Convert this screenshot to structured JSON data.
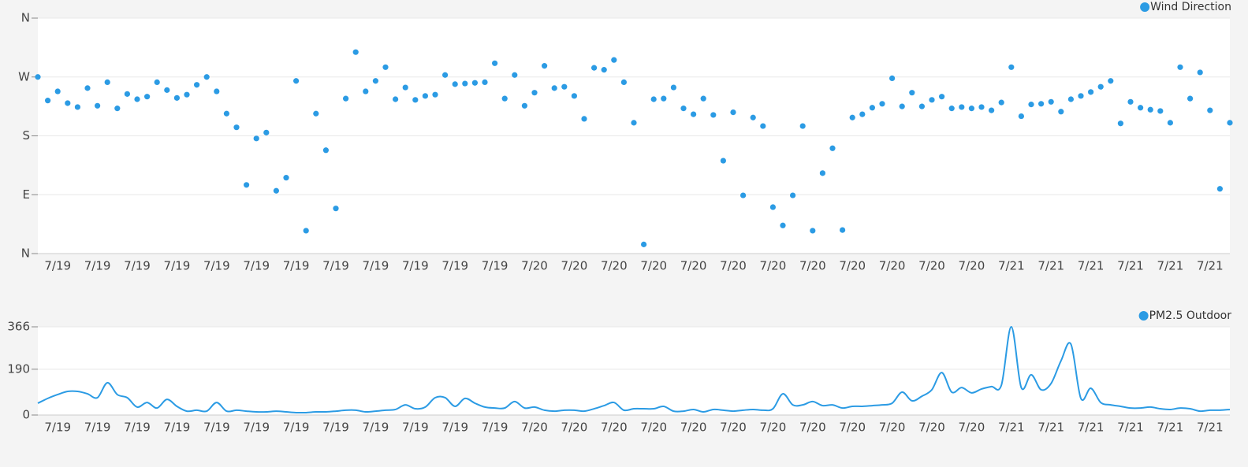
{
  "chart_data": [
    {
      "type": "scatter",
      "legend": "top-right",
      "grid": true,
      "categories": [
        null,
        null,
        "7/19",
        null,
        null,
        null,
        "7/19",
        null,
        null,
        null,
        "7/19",
        null,
        null,
        null,
        "7/19",
        null,
        null,
        null,
        "7/19",
        null,
        null,
        null,
        "7/19",
        null,
        null,
        null,
        "7/19",
        null,
        null,
        null,
        "7/19",
        null,
        null,
        null,
        "7/19",
        null,
        null,
        null,
        "7/19",
        null,
        null,
        null,
        "7/19",
        null,
        null,
        null,
        "7/19",
        null,
        null,
        null,
        "7/20",
        null,
        null,
        null,
        "7/20",
        null,
        null,
        null,
        "7/20",
        null,
        null,
        null,
        "7/20",
        null,
        null,
        null,
        "7/20",
        null,
        null,
        null,
        "7/20",
        null,
        null,
        null,
        "7/20",
        null,
        null,
        null,
        "7/20",
        null,
        null,
        null,
        "7/20",
        null,
        null,
        null,
        "7/20",
        null,
        null,
        null,
        "7/20",
        null,
        null,
        null,
        "7/20",
        null,
        null,
        null,
        "7/21",
        null,
        null,
        null,
        "7/21",
        null,
        null,
        null,
        "7/21",
        null,
        null,
        null,
        "7/21",
        null,
        null,
        null,
        "7/21",
        null,
        null,
        null,
        "7/21",
        null,
        null
      ],
      "series": [
        {
          "name": "Wind Direction",
          "color": "#2b9be4",
          "values": [
            270,
            234,
            248,
            230,
            224,
            253,
            226,
            262,
            222,
            244,
            236,
            240,
            262,
            250,
            238,
            243,
            258,
            270,
            248,
            214,
            193,
            105,
            176,
            185,
            96,
            116,
            264,
            35,
            214,
            158,
            69,
            237,
            308,
            248,
            264,
            285,
            236,
            254,
            235,
            241,
            243,
            273,
            259,
            260,
            261,
            262,
            291,
            237,
            273,
            226,
            246,
            287,
            253,
            255,
            241,
            206,
            284,
            281,
            296,
            262,
            200,
            14,
            236,
            237,
            254,
            222,
            213,
            237,
            212,
            142,
            216,
            89,
            208,
            195,
            71,
            43,
            89,
            195,
            35,
            123,
            161,
            36,
            208,
            213,
            223,
            229,
            268,
            225,
            246,
            225,
            235,
            240,
            222,
            224,
            222,
            224,
            219,
            231,
            285,
            210,
            228,
            229,
            232,
            217,
            236,
            241,
            247,
            255,
            264,
            199,
            232,
            223,
            220,
            218,
            200,
            285,
            237,
            277,
            219,
            99,
            200
          ]
        }
      ],
      "ylim": [
        0,
        360
      ],
      "yticks": [
        {
          "value": 0,
          "label": "N"
        },
        {
          "value": 90,
          "label": "E"
        },
        {
          "value": 180,
          "label": "S"
        },
        {
          "value": 270,
          "label": "W"
        },
        {
          "value": 360,
          "label": "N"
        }
      ]
    },
    {
      "type": "line",
      "legend": "top-right",
      "grid": true,
      "categories": [
        null,
        null,
        "7/19",
        null,
        null,
        null,
        "7/19",
        null,
        null,
        null,
        "7/19",
        null,
        null,
        null,
        "7/19",
        null,
        null,
        null,
        "7/19",
        null,
        null,
        null,
        "7/19",
        null,
        null,
        null,
        "7/19",
        null,
        null,
        null,
        "7/19",
        null,
        null,
        null,
        "7/19",
        null,
        null,
        null,
        "7/19",
        null,
        null,
        null,
        "7/19",
        null,
        null,
        null,
        "7/19",
        null,
        null,
        null,
        "7/20",
        null,
        null,
        null,
        "7/20",
        null,
        null,
        null,
        "7/20",
        null,
        null,
        null,
        "7/20",
        null,
        null,
        null,
        "7/20",
        null,
        null,
        null,
        "7/20",
        null,
        null,
        null,
        "7/20",
        null,
        null,
        null,
        "7/20",
        null,
        null,
        null,
        "7/20",
        null,
        null,
        null,
        "7/20",
        null,
        null,
        null,
        "7/20",
        null,
        null,
        null,
        "7/20",
        null,
        null,
        null,
        "7/21",
        null,
        null,
        null,
        "7/21",
        null,
        null,
        null,
        "7/21",
        null,
        null,
        null,
        "7/21",
        null,
        null,
        null,
        "7/21",
        null,
        null,
        null,
        "7/21",
        null,
        null
      ],
      "series": [
        {
          "name": "PM2.5 Outdoor",
          "color": "#2b9be4",
          "values": [
            49,
            69,
            85,
            98,
            98,
            88,
            72,
            134,
            85,
            72,
            33,
            52,
            29,
            65,
            36,
            16,
            20,
            16,
            52,
            16,
            20,
            16,
            13,
            13,
            16,
            13,
            10,
            10,
            13,
            13,
            16,
            20,
            20,
            13,
            16,
            20,
            23,
            42,
            26,
            33,
            72,
            72,
            36,
            69,
            49,
            33,
            29,
            29,
            56,
            29,
            33,
            20,
            16,
            20,
            20,
            16,
            26,
            39,
            52,
            20,
            26,
            26,
            26,
            36,
            16,
            16,
            23,
            13,
            23,
            20,
            16,
            20,
            23,
            20,
            26,
            88,
            42,
            42,
            56,
            39,
            42,
            29,
            36,
            36,
            39,
            42,
            49,
            95,
            59,
            78,
            105,
            176,
            95,
            114,
            92,
            108,
            118,
            124,
            366,
            114,
            167,
            105,
            131,
            225,
            294,
            69,
            111,
            52,
            42,
            36,
            29,
            29,
            33,
            26,
            23,
            29,
            26,
            16,
            20,
            20,
            23
          ]
        }
      ],
      "ylim": [
        0,
        366
      ],
      "yticks": [
        0,
        190,
        366
      ]
    }
  ]
}
